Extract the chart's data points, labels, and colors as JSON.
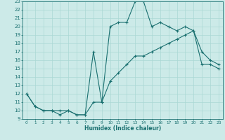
{
  "xlabel": "Humidex (Indice chaleur)",
  "bg_color": "#cceae8",
  "line_color": "#1a7070",
  "grid_color": "#aad8d4",
  "xlim": [
    -0.5,
    23.5
  ],
  "ylim": [
    9,
    23
  ],
  "xticks": [
    0,
    1,
    2,
    3,
    4,
    5,
    6,
    7,
    8,
    9,
    10,
    11,
    12,
    13,
    14,
    15,
    16,
    17,
    18,
    19,
    20,
    21,
    22,
    23
  ],
  "yticks": [
    9,
    10,
    11,
    12,
    13,
    14,
    15,
    16,
    17,
    18,
    19,
    20,
    21,
    22,
    23
  ],
  "line1_x": [
    0,
    1,
    2,
    3,
    4,
    5,
    6,
    7,
    8,
    9,
    10,
    11,
    12,
    13,
    14,
    15,
    16,
    17,
    18,
    19,
    20,
    21,
    22,
    23
  ],
  "line1_y": [
    12,
    10.5,
    10,
    10,
    9.5,
    10,
    9.5,
    9.5,
    11,
    11,
    20,
    20.5,
    20.5,
    23,
    23,
    20,
    20.5,
    20,
    19.5,
    20,
    19.5,
    17,
    16,
    15.5
  ],
  "line2_x": [
    0,
    1,
    2,
    3,
    4,
    5,
    6,
    7,
    8,
    9,
    10,
    11,
    12,
    13,
    14,
    15,
    16,
    17,
    18,
    19,
    20,
    21,
    22,
    23
  ],
  "line2_y": [
    12,
    10.5,
    10,
    10,
    10,
    10,
    9.5,
    9.5,
    17,
    11,
    13.5,
    14.5,
    15.5,
    16.5,
    16.5,
    17,
    17.5,
    18,
    18.5,
    19,
    19.5,
    15.5,
    15.5,
    15
  ]
}
